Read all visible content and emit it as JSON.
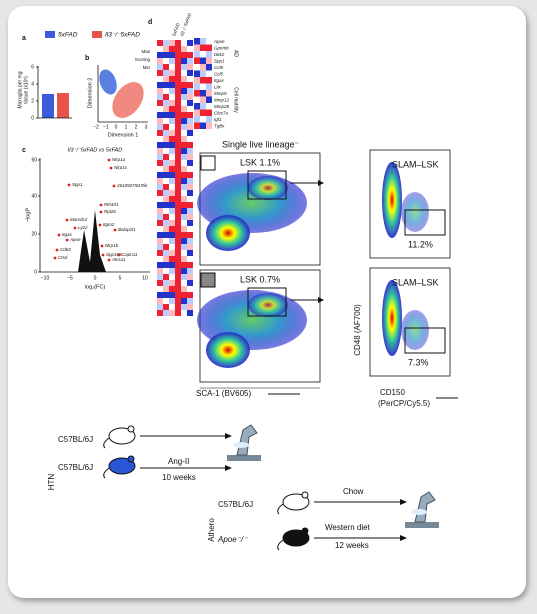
{
  "panel_a": {
    "label": "a",
    "legend": [
      "5xFAD",
      "Il3⁻/⁻5xFAD"
    ],
    "ylabel": [
      "Microglia per mg",
      "tissue (x10³)"
    ],
    "yticks": [
      "0",
      "2",
      "4",
      "6"
    ]
  },
  "panel_b": {
    "label": "b",
    "xlabel": "Dimension 1",
    "ylabel": "Dimension 2",
    "xticks": [
      "−2",
      "−1",
      "0",
      "1",
      "2",
      "3"
    ]
  },
  "panel_c": {
    "label": "c",
    "title": "Il3⁻/⁻5xFAD vs 5xFAD",
    "ylabel": "−logP",
    "xlabel": "log₂(FC)",
    "yticks": [
      "0",
      "20",
      "40",
      "60"
    ],
    "xticks": [
      "−10",
      "−5",
      "0",
      "5",
      "10"
    ],
    "genes": [
      "Nlrp1a",
      "Nlrp1c",
      "Spp1",
      "2610507I01Rik",
      "Rtn4rl1",
      "Rpl26",
      "Itgm2",
      "Balap2l1",
      "Marsdc2",
      "Lyz2",
      "Itgax",
      "Apoe",
      "Cd63",
      "Ctsd",
      "Nlrp1b",
      "Spp16S",
      "Capn11",
      "Alcsa1"
    ]
  },
  "panel_d": {
    "label": "d",
    "columns": [
      "5xFAD",
      "Il3⁻/⁻5xFAD"
    ],
    "scale": [
      "Max",
      "Scoring",
      "Min"
    ],
    "genes": [
      "Apoe",
      "Gpnmb",
      "Dkk2",
      "Spp1",
      "Ccl8",
      "Ccl5",
      "Itgax",
      "Lilx",
      "Mmp9",
      "Mmp12",
      "Mmp28",
      "Clec7a",
      "Igf1",
      "Tgfbr"
    ],
    "groups": [
      "AD",
      "Cell motility"
    ]
  },
  "flow": {
    "title": "Single live lineage⁻",
    "gates": [
      "LSK 1.1%",
      "LSK 0.7%"
    ],
    "slam": [
      "SLAM–LSK",
      "SLAM–LSK"
    ],
    "slam_pct": [
      "11.2%",
      "7.3%"
    ],
    "xlabel": "SCA-1 (BV605)",
    "ylabel": "CD48 (AF700)",
    "xlabel2": [
      "CD150",
      "(PerCP/Cy5.5)"
    ]
  },
  "htn": {
    "label": "HTN",
    "mice": [
      "C57BL/6J",
      "C57BL/6J"
    ],
    "treatment": "Ang-II",
    "duration": "10 weeks"
  },
  "athero": {
    "label": "Athero",
    "mice": [
      "C57BL/6J",
      "Apoe⁻/⁻"
    ],
    "diets": [
      "Chow",
      "Western diet"
    ],
    "duration": "12 weeks"
  }
}
